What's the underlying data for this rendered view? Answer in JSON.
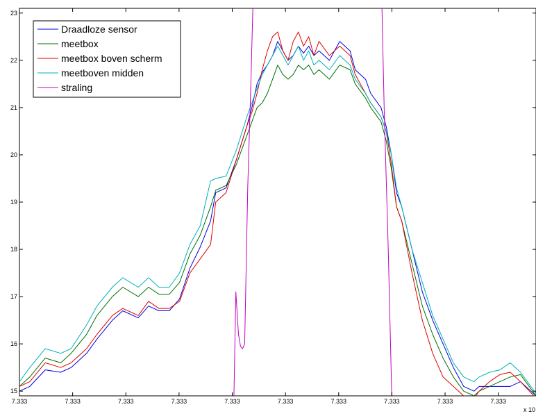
{
  "chart_data": {
    "type": "line",
    "title": "",
    "xlabel": "",
    "ylabel": "",
    "x_exponent_label": "x 10",
    "xlim": [
      0,
      1
    ],
    "ylim": [
      14.9,
      23.1
    ],
    "x_ticks": [
      {
        "value": 0.0,
        "label": "7.333"
      },
      {
        "value": 0.103,
        "label": "7.333"
      },
      {
        "value": 0.206,
        "label": "7.333"
      },
      {
        "value": 0.309,
        "label": "7.333"
      },
      {
        "value": 0.412,
        "label": "7.333"
      },
      {
        "value": 0.515,
        "label": "7.333"
      },
      {
        "value": 0.618,
        "label": "7.333"
      },
      {
        "value": 0.721,
        "label": "7.333"
      },
      {
        "value": 0.824,
        "label": "7.333"
      },
      {
        "value": 0.927,
        "label": "7.333"
      }
    ],
    "y_ticks": [
      15,
      16,
      17,
      18,
      19,
      20,
      21,
      22,
      23
    ],
    "grid": false,
    "legend_position": "top-left",
    "series": [
      {
        "name": "Draadloze sensor",
        "color": "#0000e0",
        "x": [
          0,
          0.02,
          0.05,
          0.08,
          0.1,
          0.13,
          0.15,
          0.18,
          0.2,
          0.23,
          0.25,
          0.27,
          0.29,
          0.31,
          0.33,
          0.35,
          0.37,
          0.38,
          0.4,
          0.42,
          0.44,
          0.45,
          0.46,
          0.47,
          0.48,
          0.49,
          0.5,
          0.51,
          0.52,
          0.53,
          0.54,
          0.55,
          0.56,
          0.57,
          0.58,
          0.6,
          0.62,
          0.64,
          0.65,
          0.67,
          0.68,
          0.7,
          0.71,
          0.72,
          0.73,
          0.74,
          0.76,
          0.78,
          0.8,
          0.82,
          0.84,
          0.86,
          0.88,
          0.89,
          0.91,
          0.93,
          0.95,
          0.97,
          1
        ],
        "y": [
          15.0,
          15.1,
          15.45,
          15.4,
          15.5,
          15.8,
          16.1,
          16.5,
          16.7,
          16.55,
          16.8,
          16.7,
          16.7,
          16.95,
          17.6,
          18.05,
          18.6,
          19.2,
          19.3,
          19.9,
          20.6,
          21.0,
          21.5,
          21.75,
          21.9,
          22.1,
          22.4,
          22.2,
          22.0,
          22.1,
          22.3,
          22.15,
          22.3,
          22.1,
          22.2,
          22.0,
          22.4,
          22.2,
          21.8,
          21.6,
          21.3,
          21.0,
          20.6,
          20.0,
          19.2,
          18.9,
          18.0,
          17.1,
          16.5,
          16.0,
          15.5,
          15.1,
          15.0,
          15.1,
          15.1,
          15.1,
          15.1,
          15.2,
          14.9
        ]
      },
      {
        "name": "meetbox",
        "color": "#007000",
        "x": [
          0,
          0.02,
          0.05,
          0.08,
          0.1,
          0.13,
          0.15,
          0.18,
          0.2,
          0.23,
          0.25,
          0.27,
          0.29,
          0.31,
          0.33,
          0.35,
          0.37,
          0.38,
          0.4,
          0.42,
          0.44,
          0.45,
          0.46,
          0.47,
          0.48,
          0.49,
          0.5,
          0.51,
          0.52,
          0.53,
          0.54,
          0.55,
          0.56,
          0.57,
          0.58,
          0.6,
          0.62,
          0.64,
          0.65,
          0.67,
          0.68,
          0.7,
          0.71,
          0.72,
          0.73,
          0.74,
          0.76,
          0.78,
          0.8,
          0.82,
          0.84,
          0.86,
          0.88,
          0.89,
          0.91,
          0.93,
          0.95,
          0.97,
          1
        ],
        "y": [
          15.1,
          15.3,
          15.7,
          15.6,
          15.8,
          16.2,
          16.6,
          17.0,
          17.2,
          17.0,
          17.2,
          17.05,
          17.05,
          17.3,
          17.9,
          18.3,
          18.9,
          19.25,
          19.35,
          19.8,
          20.4,
          20.7,
          21.0,
          21.1,
          21.3,
          21.6,
          21.9,
          21.7,
          21.6,
          21.7,
          21.9,
          21.8,
          21.9,
          21.7,
          21.8,
          21.6,
          21.9,
          21.8,
          21.5,
          21.2,
          21.0,
          20.7,
          20.3,
          19.7,
          18.9,
          18.6,
          17.7,
          16.8,
          16.2,
          15.7,
          15.3,
          15.0,
          14.9,
          15.0,
          15.1,
          15.2,
          15.3,
          15.35,
          14.9
        ]
      },
      {
        "name": "meetbox boven scherm",
        "color": "#e00000",
        "x": [
          0,
          0.02,
          0.05,
          0.08,
          0.1,
          0.13,
          0.15,
          0.18,
          0.2,
          0.23,
          0.25,
          0.27,
          0.29,
          0.31,
          0.33,
          0.35,
          0.37,
          0.38,
          0.4,
          0.42,
          0.44,
          0.45,
          0.46,
          0.47,
          0.48,
          0.49,
          0.5,
          0.51,
          0.52,
          0.53,
          0.54,
          0.55,
          0.56,
          0.57,
          0.58,
          0.6,
          0.62,
          0.64,
          0.65,
          0.67,
          0.68,
          0.7,
          0.71,
          0.72,
          0.73,
          0.74,
          0.76,
          0.78,
          0.8,
          0.82,
          0.84,
          0.86,
          0.88,
          0.89,
          0.91,
          0.93,
          0.95,
          0.97,
          1
        ],
        "y": [
          15.1,
          15.2,
          15.6,
          15.5,
          15.6,
          15.9,
          16.2,
          16.6,
          16.75,
          16.6,
          16.9,
          16.75,
          16.75,
          16.9,
          17.5,
          17.8,
          18.1,
          19.0,
          19.2,
          19.9,
          20.6,
          20.9,
          21.3,
          21.8,
          22.2,
          22.5,
          22.6,
          22.2,
          22.0,
          22.4,
          22.6,
          22.3,
          22.5,
          22.1,
          22.4,
          22.1,
          22.3,
          22.1,
          21.7,
          21.3,
          21.1,
          20.8,
          20.5,
          19.8,
          18.9,
          18.6,
          17.5,
          16.5,
          15.8,
          15.3,
          15.1,
          14.9,
          14.85,
          15.0,
          15.2,
          15.35,
          15.4,
          15.2,
          14.85
        ]
      },
      {
        "name": "meetboven midden",
        "color": "#00b0b8",
        "x": [
          0,
          0.02,
          0.05,
          0.08,
          0.1,
          0.13,
          0.15,
          0.18,
          0.2,
          0.23,
          0.25,
          0.27,
          0.29,
          0.31,
          0.33,
          0.35,
          0.37,
          0.38,
          0.4,
          0.42,
          0.44,
          0.45,
          0.46,
          0.47,
          0.48,
          0.49,
          0.5,
          0.51,
          0.52,
          0.53,
          0.54,
          0.55,
          0.56,
          0.57,
          0.58,
          0.6,
          0.62,
          0.64,
          0.65,
          0.67,
          0.68,
          0.7,
          0.71,
          0.72,
          0.73,
          0.74,
          0.76,
          0.78,
          0.8,
          0.82,
          0.84,
          0.86,
          0.88,
          0.89,
          0.91,
          0.93,
          0.95,
          0.97,
          1
        ],
        "y": [
          15.2,
          15.5,
          15.9,
          15.8,
          15.9,
          16.4,
          16.8,
          17.2,
          17.4,
          17.2,
          17.4,
          17.2,
          17.2,
          17.5,
          18.1,
          18.5,
          19.45,
          19.5,
          19.55,
          20.1,
          20.8,
          21.1,
          21.4,
          21.7,
          21.9,
          22.1,
          22.3,
          22.1,
          21.9,
          22.1,
          22.3,
          22.0,
          22.2,
          21.9,
          22.0,
          21.8,
          22.1,
          21.9,
          21.6,
          21.3,
          21.1,
          20.8,
          20.5,
          20.0,
          19.3,
          18.9,
          18.0,
          17.3,
          16.6,
          16.1,
          15.6,
          15.3,
          15.2,
          15.3,
          15.4,
          15.45,
          15.6,
          15.4,
          14.95
        ]
      },
      {
        "name": "straling",
        "color": "#c000c0",
        "x": [
          0.415,
          0.419,
          0.424,
          0.428,
          0.432,
          0.436,
          0.442,
          0.448,
          0.454,
          0.7,
          0.706,
          0.714,
          0.721
        ],
        "y": [
          14.8,
          17.1,
          16.2,
          15.95,
          15.9,
          16.0,
          19.3,
          21.5,
          24.0,
          24.0,
          21.0,
          18.0,
          14.8
        ]
      }
    ]
  }
}
